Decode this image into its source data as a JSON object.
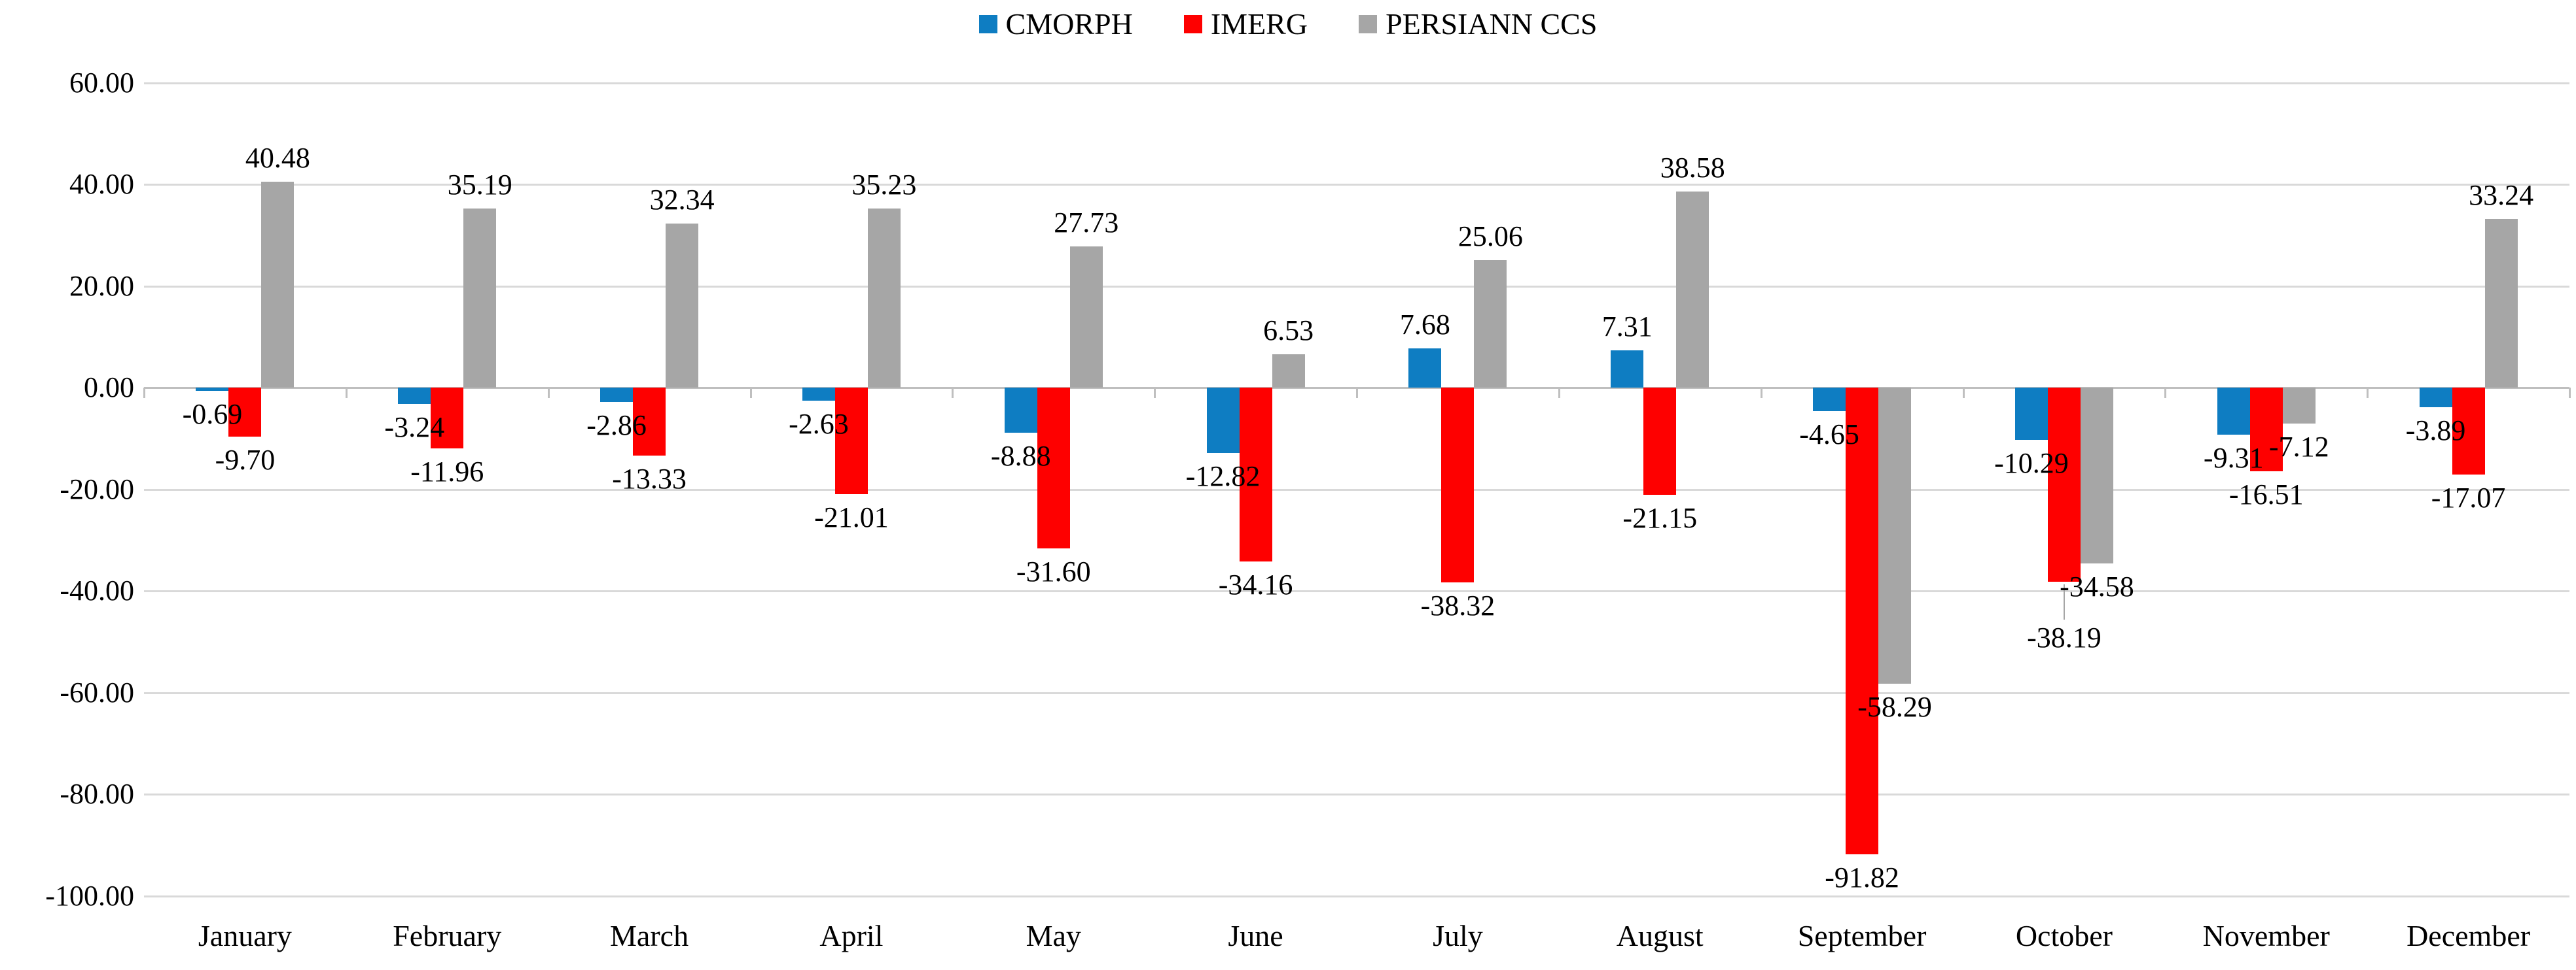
{
  "chart_data": {
    "type": "bar",
    "title": "",
    "categories": [
      "January",
      "February",
      "March",
      "April",
      "May",
      "June",
      "July",
      "August",
      "September",
      "October",
      "November",
      "December"
    ],
    "series": [
      {
        "name": "CMORPH",
        "color": "#0e7dc2",
        "values": [
          -0.69,
          -3.24,
          -2.86,
          -2.63,
          -8.88,
          -12.82,
          7.68,
          7.31,
          -4.65,
          -10.29,
          -9.31,
          -3.89
        ],
        "labels": [
          "-0.69",
          "-3.24",
          "-2.86",
          "-2.63",
          "-8.88",
          "-12.82",
          "7.68",
          "7.31",
          "-4.65",
          "-10.29",
          "-9.31",
          "-3.89"
        ]
      },
      {
        "name": "IMERG",
        "color": "#fe0000",
        "values": [
          -9.7,
          -11.96,
          -13.33,
          -21.01,
          -31.6,
          -34.16,
          -38.32,
          -21.15,
          -91.82,
          -38.19,
          -16.51,
          -17.07
        ],
        "labels": [
          "-9.70",
          "-11.96",
          "-13.33",
          "-21.01",
          "-31.60",
          "-34.16",
          "-38.32",
          "-21.15",
          "-91.82",
          "-38.19",
          "-16.51",
          "-17.07"
        ]
      },
      {
        "name": "PERSIANN CCS",
        "color": "#a6a6a6",
        "values": [
          40.48,
          35.19,
          32.34,
          35.23,
          27.73,
          6.53,
          25.06,
          38.58,
          -58.29,
          -34.58,
          -7.12,
          33.24
        ],
        "labels": [
          "40.48",
          "35.19",
          "32.34",
          "35.23",
          "27.73",
          "6.53",
          "25.06",
          "38.58",
          "-58.29",
          "-34.58",
          "-7.12",
          "33.24"
        ]
      }
    ],
    "y_axis": {
      "min": -100,
      "max": 60,
      "step": 20,
      "tick_values": [
        60,
        40,
        20,
        0,
        -20,
        -40,
        -60,
        -80,
        -100
      ],
      "tick_labels": [
        "60.00",
        "40.00",
        "20.00",
        "0.00",
        "-20.00",
        "-40.00",
        "-60.00",
        "-80.00",
        "-100.00"
      ]
    },
    "legend_position": "top",
    "grid": true,
    "data_labels_visible": true,
    "label_leader_lines": [
      {
        "series": "IMERG",
        "category": "October"
      }
    ],
    "colors": {
      "gridline": "#d9d9d9",
      "category_axis": "#bfbfbf",
      "background": "#ffffff",
      "text": "#000000"
    }
  }
}
